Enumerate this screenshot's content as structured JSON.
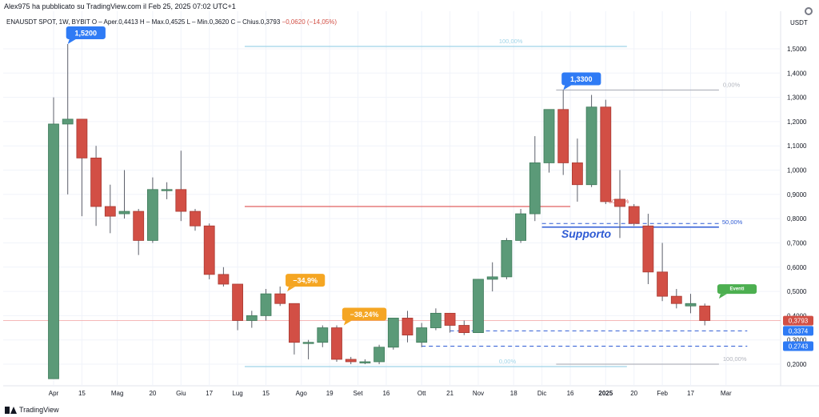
{
  "header": {
    "publisher": "Alex975 ha pubblicato su TradingView.com il Feb 25, 2025 07:02 UTC+1",
    "legend_prefix": "ENAUSDT SPOT, 1W, BYBIT",
    "legend_ohlc": "O – Aper.0,4413  H – Max.0,4525  L – Min.0,3620  C – Chius.0,3793",
    "legend_change": "−0,0620 (−14,05%)"
  },
  "footer": {
    "brand": "TradingView"
  },
  "colors": {
    "up": "#5b9a78",
    "down": "#d24f45",
    "grid": "#f0f3fa",
    "fib": "#9fd4e8",
    "support": "#2e5bd4",
    "label_blue": "#2f7bf5",
    "label_orange": "#f5a623",
    "label_green": "#4caf50"
  },
  "chart_data": {
    "type": "candlestick",
    "symbol": "ENAUSDT SPOT",
    "timeframe": "1W",
    "exchange": "BYBIT",
    "y_axis_label": "USDT",
    "ylim": [
      0.1,
      1.65
    ],
    "y_ticks": [
      "1,5000",
      "1,4000",
      "1,3000",
      "1,2000",
      "1,1000",
      "1,0000",
      "0,9000",
      "0,8000",
      "0,7000",
      "0,6000",
      "0,5000",
      "0,4000",
      "0,3000",
      "0,2000"
    ],
    "x_ticks": [
      {
        "label": "Apr",
        "i": 0
      },
      {
        "label": "15",
        "i": 2
      },
      {
        "label": "Mag",
        "i": 4.5
      },
      {
        "label": "20",
        "i": 7
      },
      {
        "label": "Giu",
        "i": 9
      },
      {
        "label": "17",
        "i": 11
      },
      {
        "label": "Lug",
        "i": 13
      },
      {
        "label": "15",
        "i": 15
      },
      {
        "label": "Ago",
        "i": 17.5
      },
      {
        "label": "19",
        "i": 19.5
      },
      {
        "label": "Set",
        "i": 21.5
      },
      {
        "label": "16",
        "i": 23.5
      },
      {
        "label": "Ott",
        "i": 26
      },
      {
        "label": "21",
        "i": 28
      },
      {
        "label": "Nov",
        "i": 30
      },
      {
        "label": "18",
        "i": 32.5
      },
      {
        "label": "Dic",
        "i": 34.5
      },
      {
        "label": "16",
        "i": 36.5
      },
      {
        "label": "2025",
        "i": 39
      },
      {
        "label": "20",
        "i": 41
      },
      {
        "label": "Feb",
        "i": 43
      },
      {
        "label": "17",
        "i": 45
      },
      {
        "label": "Mar",
        "i": 47.5
      }
    ],
    "candles": [
      {
        "o": 0.14,
        "h": 1.3,
        "l": 0.14,
        "c": 1.19
      },
      {
        "o": 1.19,
        "h": 1.52,
        "l": 0.9,
        "c": 1.21
      },
      {
        "o": 1.21,
        "h": 1.21,
        "l": 0.81,
        "c": 1.05
      },
      {
        "o": 1.05,
        "h": 1.1,
        "l": 0.77,
        "c": 0.85
      },
      {
        "o": 0.85,
        "h": 0.94,
        "l": 0.74,
        "c": 0.81
      },
      {
        "o": 0.82,
        "h": 1.0,
        "l": 0.8,
        "c": 0.83
      },
      {
        "o": 0.83,
        "h": 0.84,
        "l": 0.65,
        "c": 0.71
      },
      {
        "o": 0.71,
        "h": 0.97,
        "l": 0.7,
        "c": 0.92
      },
      {
        "o": 0.92,
        "h": 0.95,
        "l": 0.88,
        "c": 0.92
      },
      {
        "o": 0.92,
        "h": 1.08,
        "l": 0.79,
        "c": 0.83
      },
      {
        "o": 0.83,
        "h": 0.84,
        "l": 0.75,
        "c": 0.77
      },
      {
        "o": 0.77,
        "h": 0.78,
        "l": 0.55,
        "c": 0.57
      },
      {
        "o": 0.57,
        "h": 0.6,
        "l": 0.52,
        "c": 0.53
      },
      {
        "o": 0.53,
        "h": 0.53,
        "l": 0.34,
        "c": 0.38
      },
      {
        "o": 0.38,
        "h": 0.42,
        "l": 0.35,
        "c": 0.4
      },
      {
        "o": 0.4,
        "h": 0.51,
        "l": 0.38,
        "c": 0.49
      },
      {
        "o": 0.49,
        "h": 0.52,
        "l": 0.44,
        "c": 0.45
      },
      {
        "o": 0.45,
        "h": 0.45,
        "l": 0.24,
        "c": 0.29
      },
      {
        "o": 0.29,
        "h": 0.3,
        "l": 0.22,
        "c": 0.29
      },
      {
        "o": 0.29,
        "h": 0.36,
        "l": 0.27,
        "c": 0.35
      },
      {
        "o": 0.35,
        "h": 0.36,
        "l": 0.21,
        "c": 0.22
      },
      {
        "o": 0.22,
        "h": 0.23,
        "l": 0.2,
        "c": 0.21
      },
      {
        "o": 0.21,
        "h": 0.22,
        "l": 0.2,
        "c": 0.21
      },
      {
        "o": 0.21,
        "h": 0.28,
        "l": 0.2,
        "c": 0.27
      },
      {
        "o": 0.27,
        "h": 0.39,
        "l": 0.26,
        "c": 0.39
      },
      {
        "o": 0.39,
        "h": 0.42,
        "l": 0.29,
        "c": 0.32
      },
      {
        "o": 0.29,
        "h": 0.37,
        "l": 0.27,
        "c": 0.35
      },
      {
        "o": 0.35,
        "h": 0.43,
        "l": 0.34,
        "c": 0.41
      },
      {
        "o": 0.41,
        "h": 0.41,
        "l": 0.33,
        "c": 0.36
      },
      {
        "o": 0.36,
        "h": 0.38,
        "l": 0.32,
        "c": 0.33
      },
      {
        "o": 0.33,
        "h": 0.55,
        "l": 0.33,
        "c": 0.55
      },
      {
        "o": 0.55,
        "h": 0.62,
        "l": 0.5,
        "c": 0.56
      },
      {
        "o": 0.56,
        "h": 0.72,
        "l": 0.55,
        "c": 0.71
      },
      {
        "o": 0.71,
        "h": 0.84,
        "l": 0.7,
        "c": 0.82
      },
      {
        "o": 0.82,
        "h": 1.14,
        "l": 0.79,
        "c": 1.03
      },
      {
        "o": 1.03,
        "h": 1.25,
        "l": 0.99,
        "c": 1.25
      },
      {
        "o": 1.25,
        "h": 1.33,
        "l": 0.98,
        "c": 1.03
      },
      {
        "o": 1.03,
        "h": 1.13,
        "l": 0.87,
        "c": 0.94
      },
      {
        "o": 0.94,
        "h": 1.31,
        "l": 0.93,
        "c": 1.26
      },
      {
        "o": 1.26,
        "h": 1.29,
        "l": 0.86,
        "c": 0.87
      },
      {
        "o": 0.88,
        "h": 1.0,
        "l": 0.72,
        "c": 0.85
      },
      {
        "o": 0.85,
        "h": 0.86,
        "l": 0.77,
        "c": 0.78
      },
      {
        "o": 0.77,
        "h": 0.82,
        "l": 0.53,
        "c": 0.58
      },
      {
        "o": 0.58,
        "h": 0.7,
        "l": 0.46,
        "c": 0.48
      },
      {
        "o": 0.48,
        "h": 0.51,
        "l": 0.43,
        "c": 0.45
      },
      {
        "o": 0.44,
        "h": 0.49,
        "l": 0.41,
        "c": 0.45
      },
      {
        "o": 0.44,
        "h": 0.45,
        "l": 0.36,
        "c": 0.38
      }
    ],
    "levels": [
      {
        "name": "fib-top-100",
        "price": 1.51,
        "from_i": 13.5,
        "to_i": 40.5,
        "label": "100,00%",
        "color": "#9fd4e8"
      },
      {
        "name": "fib-bottom-0",
        "price": 0.19,
        "from_i": 13.5,
        "to_i": 40.5,
        "label": "0,00%",
        "color": "#9fd4e8"
      },
      {
        "name": "fib-mid-50",
        "price": 0.85,
        "from_i": 13.5,
        "to_i": 36.5,
        "label": "50,00%",
        "color": "#e06060"
      },
      {
        "name": "fib2-top-0",
        "price": 1.33,
        "from_i": 35.5,
        "to_i": 47,
        "label": "0,00%",
        "color": "#b2b5be"
      },
      {
        "name": "fib2-bottom-100",
        "price": 0.2,
        "from_i": 35.5,
        "to_i": 47,
        "label": "100,00%",
        "color": "#b2b5be"
      },
      {
        "name": "support-line",
        "price": 0.765,
        "from_i": 34.5,
        "to_i": 47,
        "label": "50,00%",
        "color": "#2e5bd4"
      }
    ],
    "dashed_levels": [
      {
        "price": 0.3374,
        "from_i": 28,
        "to_i": 49,
        "label": "0,3374"
      },
      {
        "price": 0.2743,
        "from_i": 26,
        "to_i": 49,
        "label": "0,2743"
      },
      {
        "price": 0.78,
        "from_i": 34.5,
        "to_i": 47,
        "label": ""
      }
    ],
    "annotations": [
      {
        "text": "1,5200",
        "i": 1,
        "price": 1.52,
        "type": "callout",
        "color": "#2f7bf5"
      },
      {
        "text": "1,3300",
        "i": 36,
        "price": 1.33,
        "type": "callout",
        "color": "#2f7bf5"
      },
      {
        "text": "−34,9%",
        "i": 16.5,
        "price": 0.5,
        "type": "callout",
        "color": "#f5a623"
      },
      {
        "text": "−38,24%",
        "i": 20.5,
        "price": 0.36,
        "type": "callout",
        "color": "#f5a623"
      },
      {
        "text": "Eventi",
        "i": 47,
        "price": 0.47,
        "type": "callout",
        "color": "#4caf50"
      },
      {
        "text": "Supporto",
        "i": 37,
        "price": 0.735,
        "type": "text",
        "color": "#2e5bd4"
      }
    ],
    "price_tags": [
      {
        "label": "0,3793",
        "price": 0.3793,
        "color": "#d24f45"
      },
      {
        "label": "0,3374",
        "price": 0.3374,
        "color": "#2f7bf5"
      },
      {
        "label": "0,2743",
        "price": 0.2743,
        "color": "#2f7bf5"
      }
    ]
  }
}
